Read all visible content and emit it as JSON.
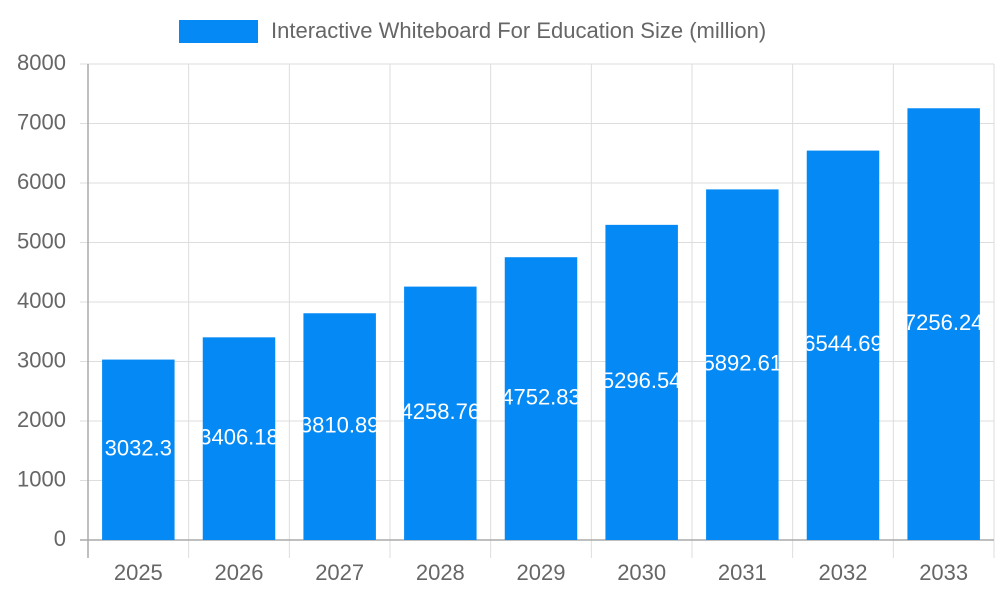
{
  "chart_data": {
    "type": "bar",
    "legend_label": "Interactive Whiteboard For Education Size (million)",
    "categories": [
      "2025",
      "2026",
      "2027",
      "2028",
      "2029",
      "2030",
      "2031",
      "2032",
      "2033"
    ],
    "values": [
      3032.3,
      3406.18,
      3810.89,
      4258.76,
      4752.83,
      5296.54,
      5892.61,
      6544.69,
      7256.24
    ],
    "color": "#058af5",
    "ylim": [
      0,
      8000
    ],
    "yticks": [
      0,
      1000,
      2000,
      3000,
      4000,
      5000,
      6000,
      7000,
      8000
    ],
    "grid": true
  }
}
